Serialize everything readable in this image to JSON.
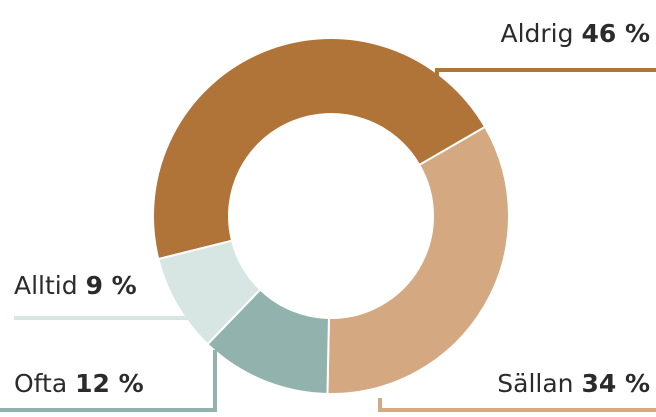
{
  "chart_data": {
    "type": "donut",
    "categories": [
      "Aldrig",
      "Sällan",
      "Ofta",
      "Alltid"
    ],
    "values": [
      46,
      34,
      12,
      9
    ],
    "value_labels": [
      "46 %",
      "34 %",
      "12 %",
      "9 %"
    ],
    "colors": [
      "#b07338",
      "#d4a981",
      "#92b3ad",
      "#d7e6e3"
    ]
  }
}
